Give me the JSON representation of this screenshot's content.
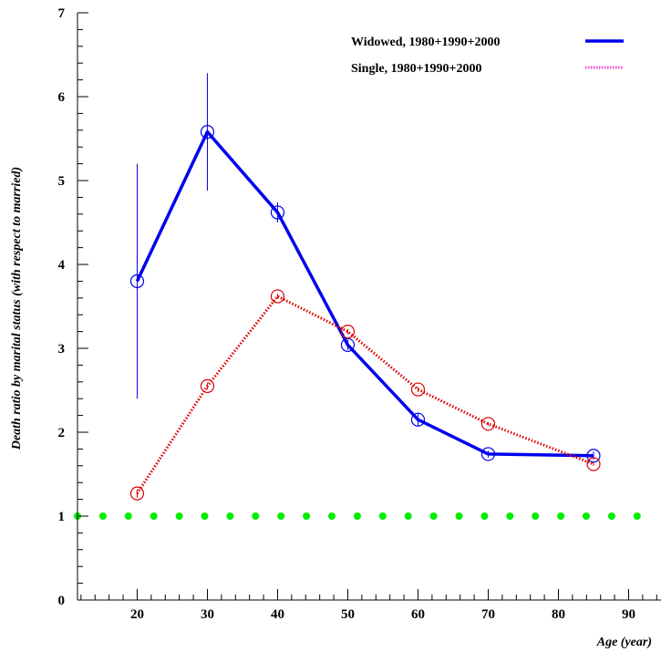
{
  "chart_data": {
    "type": "line",
    "title": "",
    "xlabel": "Age (year)",
    "ylabel": "Death ratio by marital status (with respect to married)",
    "xlim": [
      11.5,
      95
    ],
    "ylim": [
      0,
      7
    ],
    "xticks": [
      20,
      30,
      40,
      50,
      60,
      70,
      80,
      90
    ],
    "yticks": [
      0,
      1,
      2,
      3,
      4,
      5,
      6,
      7
    ],
    "grid": false,
    "legend_position": "top-right",
    "series": [
      {
        "name": "Widowed, 1980+1990+2000",
        "color": "#0000ee",
        "style": "solid",
        "x": [
          20,
          30,
          40,
          50,
          60,
          70,
          85
        ],
        "y": [
          3.8,
          5.58,
          4.62,
          3.04,
          2.15,
          1.74,
          1.72
        ],
        "err": [
          1.4,
          0.7,
          0.12,
          0.06,
          0.08,
          0.04,
          0.05
        ]
      },
      {
        "name": "Single, 1980+1990+2000",
        "color": "#dd0000",
        "legend_color": "#ee44cc",
        "style": "dotted",
        "x": [
          20,
          30,
          40,
          50,
          60,
          70,
          85
        ],
        "y": [
          1.27,
          2.55,
          3.62,
          3.2,
          2.51,
          2.1,
          1.62
        ],
        "err": [
          0.05,
          0.04,
          0.03,
          0.03,
          0.03,
          0.02,
          0.02
        ]
      }
    ],
    "reference_line": {
      "y": 1,
      "color": "#00ee00",
      "style": "dotted"
    }
  }
}
